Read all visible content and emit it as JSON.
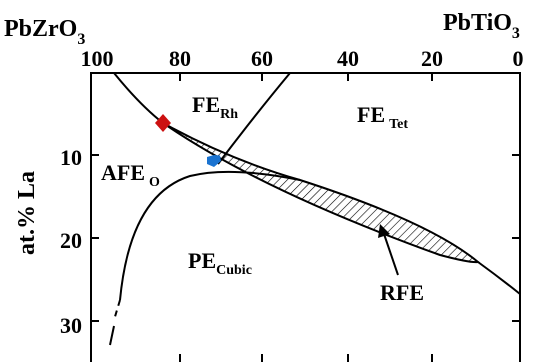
{
  "endmembers": {
    "left": {
      "base": "PbZrO",
      "sub": "3"
    },
    "right": {
      "base": "PbTiO",
      "sub": "3"
    }
  },
  "top_axis": {
    "ticks": [
      "100",
      "80",
      "60",
      "40",
      "20",
      "0"
    ]
  },
  "left_axis": {
    "label": "at.% La",
    "ticks": [
      "10",
      "20",
      "30"
    ]
  },
  "phases": {
    "fe_rh": {
      "base": "FE",
      "sub": "Rh"
    },
    "fe_tet": {
      "base": "FE",
      "sub": "Tet"
    },
    "afe_o": {
      "base": "AFE",
      "sub": "O"
    },
    "pe_cubic": {
      "base": "PE",
      "sub": "Cubic"
    },
    "rfe": {
      "label": "RFE"
    }
  },
  "markers": {
    "diamond_color": "#cc1111",
    "hexagon_color": "#1a73d0"
  },
  "colors": {
    "line": "#000000",
    "background": "#ffffff"
  }
}
